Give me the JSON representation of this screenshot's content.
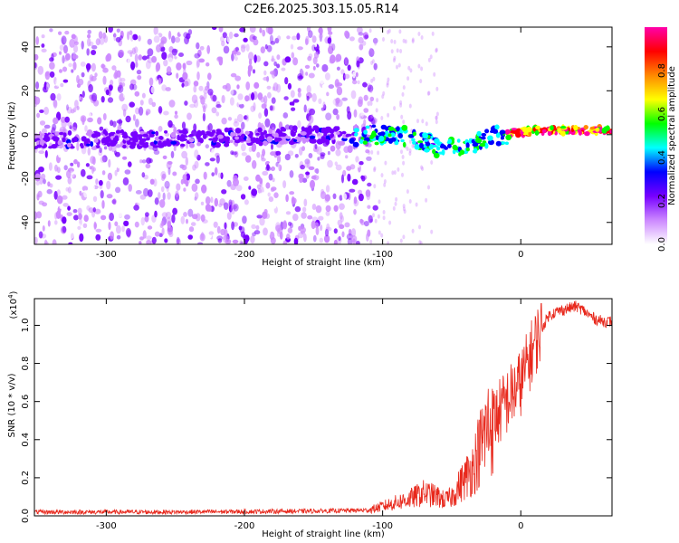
{
  "title": "C2E6.2025.303.15.05.R14",
  "chart_data": [
    {
      "type": "heatmap",
      "name": "spectrogram",
      "xlabel": "Height of straight line (km)",
      "ylabel": "Frequency (Hz)",
      "xlim": [
        -352,
        66
      ],
      "ylim": [
        -50,
        49
      ],
      "xticks": [
        -300,
        -200,
        -100,
        0
      ],
      "xtick_labels": [
        "-300",
        "-200",
        "-100",
        "0"
      ],
      "yticks": [
        -40,
        -20,
        0,
        20,
        40
      ],
      "ytick_labels": [
        "-40",
        "-20",
        "0",
        "20",
        "40"
      ],
      "ridge": {
        "x": [
          -352,
          -300,
          -250,
          -200,
          -150,
          -120,
          -110,
          -100,
          -90,
          -80,
          -70,
          -60,
          -50,
          -45,
          -40,
          -35,
          -30,
          -25,
          -20,
          -15,
          -10,
          -5,
          0,
          10,
          20,
          30,
          40,
          50,
          66
        ],
        "y": [
          -3,
          -2,
          -2,
          -1,
          0,
          -1,
          0,
          0,
          0,
          -1,
          -3,
          -6,
          -6,
          -6,
          -5,
          -4,
          -3,
          -2,
          -1,
          0,
          0,
          1,
          1,
          2,
          2,
          2,
          2,
          2,
          2
        ]
      },
      "noise_region_x": [
        -352,
        -115
      ],
      "colorbar": {
        "label": "Normalized spectral amplitude",
        "range": [
          0,
          1
        ],
        "ticks": [
          0,
          0.2,
          0.4,
          0.6,
          0.8
        ],
        "tick_labels": [
          "0.0",
          "0.2",
          "0.4",
          "0.6",
          "0.8"
        ],
        "colors": [
          "#ffffff",
          "#cc88ff",
          "#7700ff",
          "#0000ff",
          "#00ffff",
          "#00ff00",
          "#ffff00",
          "#ff8800",
          "#ff0000",
          "#ff00aa"
        ]
      }
    },
    {
      "type": "line",
      "name": "snr",
      "xlabel": "Height of straight line (km)",
      "ylabel": "SNR (10 * v/v)",
      "y_multiplier": "(x10",
      "y_multiplier_exp": "4",
      "xlim": [
        -352,
        66
      ],
      "ylim": [
        0,
        1.14
      ],
      "xticks": [
        -300,
        -200,
        -100,
        0
      ],
      "xtick_labels": [
        "-300",
        "-200",
        "-100",
        "0"
      ],
      "yticks": [
        0,
        0.2,
        0.4,
        0.6,
        0.8,
        1.0
      ],
      "ytick_labels": [
        "0.0",
        "0.2",
        "0.4",
        "0.6",
        "0.8",
        "1.0"
      ],
      "color": "#e8281c",
      "envelope": {
        "x": [
          -352,
          -250,
          -150,
          -110,
          -100,
          -90,
          -80,
          -70,
          -60,
          -55,
          -50,
          -45,
          -40,
          -35,
          -30,
          -25,
          -20,
          -15,
          -10,
          -5,
          0,
          5,
          10,
          15,
          20,
          25,
          30,
          35,
          40,
          45,
          50,
          55,
          60,
          66
        ],
        "y": [
          0.02,
          0.02,
          0.025,
          0.03,
          0.05,
          0.07,
          0.09,
          0.12,
          0.1,
          0.08,
          0.1,
          0.15,
          0.2,
          0.25,
          0.35,
          0.45,
          0.5,
          0.55,
          0.6,
          0.65,
          0.7,
          0.8,
          0.9,
          0.98,
          1.05,
          1.07,
          1.08,
          1.09,
          1.1,
          1.08,
          1.05,
          1.03,
          1.02,
          1.02
        ]
      }
    }
  ]
}
